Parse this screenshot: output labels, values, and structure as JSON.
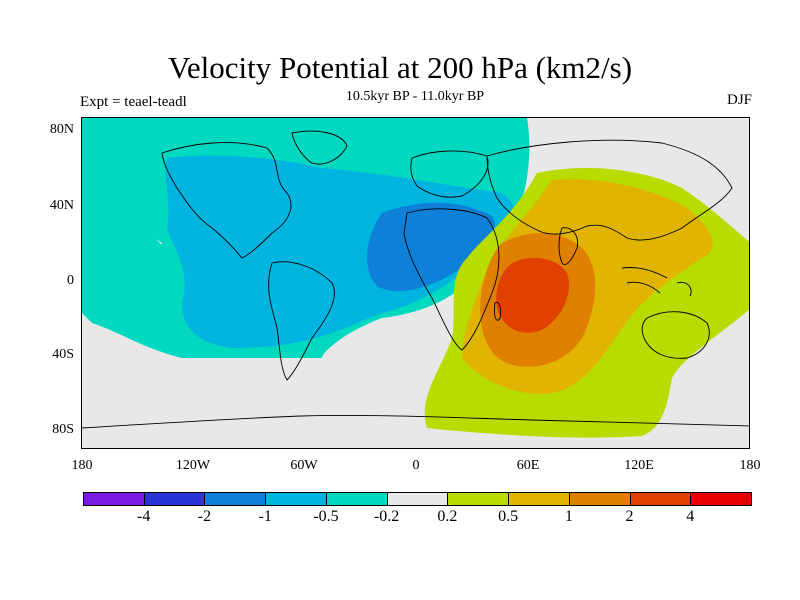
{
  "title": "Velocity Potential at 200 hPa (km2/s)",
  "subtitle": "10.5kyr BP - 11.0kyr BP",
  "left_label": "Expt = teael-teadl",
  "right_label": "DJF",
  "lat_ticks": [
    "80N",
    "40N",
    "0",
    "40S",
    "80S"
  ],
  "lon_ticks": [
    "180",
    "120W",
    "60W",
    "0",
    "60E",
    "120E",
    "180"
  ],
  "colorbar": {
    "colors": [
      "#7a1ce0",
      "#2a35d8",
      "#0f80d8",
      "#00b4e0",
      "#00d8c0",
      "#e8e8e8",
      "#b8dc00",
      "#e0b400",
      "#e08000",
      "#e04000",
      "#e80000"
    ],
    "labels": [
      "-4",
      "-2",
      "-1",
      "-0.5",
      "-0.2",
      "0.2",
      "0.5",
      "1",
      "2",
      "4"
    ]
  }
}
